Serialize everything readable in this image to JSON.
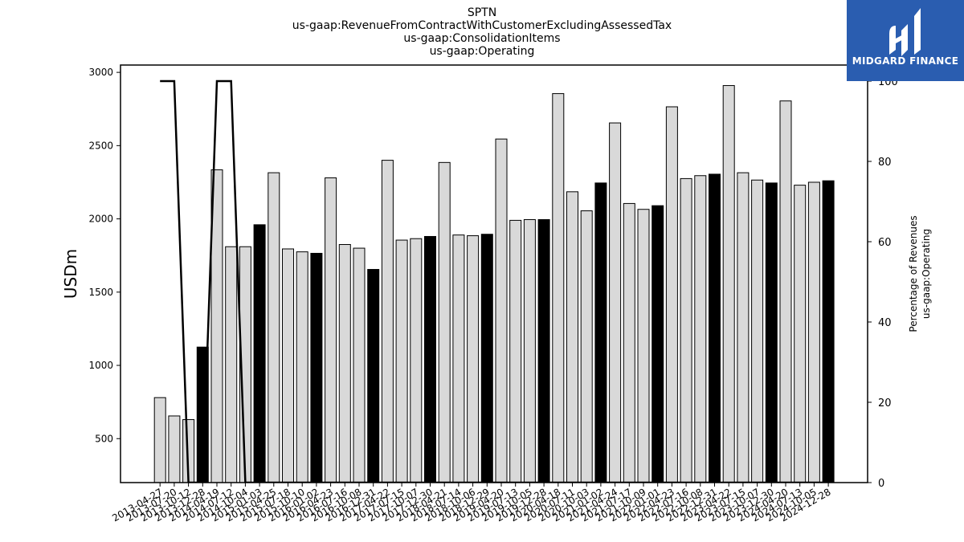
{
  "titles": [
    "SPTN",
    "us-gaap:RevenueFromContractWithCustomerExcludingAssessedTax",
    "us-gaap:ConsolidationItems",
    "us-gaap:Operating"
  ],
  "logo": {
    "text": "MIDGARD FINANCE",
    "bg_color": "#2a5db0"
  },
  "chart_data": {
    "type": "bar",
    "ylabel": "USDm",
    "y2label": [
      "Percentage of Revenues",
      "us-gaap:Operating"
    ],
    "ylim": [
      200,
      3050
    ],
    "y2lim": [
      0,
      104
    ],
    "yticks": [
      500,
      1000,
      1500,
      2000,
      2500,
      3000
    ],
    "y2ticks": [
      0,
      20,
      40,
      60,
      80,
      100
    ],
    "grid": false,
    "categories": [
      "2013-04-27",
      "2013-07-20",
      "2013-10-12",
      "2013-12-28",
      "2014-04-19",
      "2014-07-12",
      "2014-10-04",
      "2015-01-03",
      "2015-04-25",
      "2015-07-18",
      "2015-10-10",
      "2016-01-02",
      "2016-04-23",
      "2016-07-16",
      "2016-10-08",
      "2016-12-31",
      "2017-04-22",
      "2017-07-15",
      "2017-10-07",
      "2017-12-30",
      "2018-04-21",
      "2018-07-14",
      "2018-10-06",
      "2018-12-29",
      "2019-04-20",
      "2019-07-13",
      "2019-10-05",
      "2019-12-28",
      "2020-04-18",
      "2020-07-11",
      "2020-10-03",
      "2021-01-02",
      "2021-04-24",
      "2021-07-17",
      "2021-10-09",
      "2022-01-01",
      "2022-04-23",
      "2022-07-16",
      "2022-10-08",
      "2022-12-31",
      "2023-04-22",
      "2023-07-15",
      "2023-10-07",
      "2023-12-30",
      "2024-04-20",
      "2024-07-13",
      "2024-10-05",
      "2024-12-28"
    ],
    "series": [
      {
        "kind": "bar",
        "values": [
          780,
          655,
          630,
          1125,
          2335,
          1810,
          1810,
          1960,
          2315,
          1795,
          1775,
          1765,
          2280,
          1825,
          1800,
          1655,
          2400,
          1855,
          1865,
          1880,
          2385,
          1890,
          1885,
          1895,
          2545,
          1990,
          1995,
          1995,
          2855,
          2185,
          2055,
          2245,
          2655,
          2105,
          2065,
          2090,
          2765,
          2275,
          2295,
          2305,
          2910,
          2315,
          2265,
          2245,
          2805,
          2230,
          2250,
          2260
        ],
        "colors": [
          "#d9d9d9",
          "#d9d9d9",
          "#d9d9d9",
          "#000000",
          "#d9d9d9",
          "#d9d9d9",
          "#d9d9d9",
          "#000000",
          "#d9d9d9",
          "#d9d9d9",
          "#d9d9d9",
          "#000000",
          "#d9d9d9",
          "#d9d9d9",
          "#d9d9d9",
          "#000000",
          "#d9d9d9",
          "#d9d9d9",
          "#d9d9d9",
          "#000000",
          "#d9d9d9",
          "#d9d9d9",
          "#d9d9d9",
          "#000000",
          "#d9d9d9",
          "#d9d9d9",
          "#d9d9d9",
          "#000000",
          "#d9d9d9",
          "#d9d9d9",
          "#d9d9d9",
          "#000000",
          "#d9d9d9",
          "#d9d9d9",
          "#d9d9d9",
          "#000000",
          "#d9d9d9",
          "#d9d9d9",
          "#d9d9d9",
          "#000000",
          "#d9d9d9",
          "#d9d9d9",
          "#d9d9d9",
          "#000000",
          "#d9d9d9",
          "#d9d9d9",
          "#d9d9d9",
          "#000000"
        ]
      },
      {
        "kind": "line",
        "axis": "right",
        "color": "#000000",
        "values": [
          100,
          100,
          0,
          0,
          100,
          100,
          0,
          0,
          0,
          0,
          0,
          0,
          0,
          0,
          0,
          0,
          0,
          0,
          0,
          0,
          0,
          0,
          0,
          0,
          0,
          0,
          0,
          0,
          0,
          0,
          0,
          0,
          0,
          0,
          0,
          0,
          0,
          0,
          0,
          0,
          0,
          0,
          0,
          0,
          0,
          0,
          0,
          0
        ]
      }
    ]
  }
}
